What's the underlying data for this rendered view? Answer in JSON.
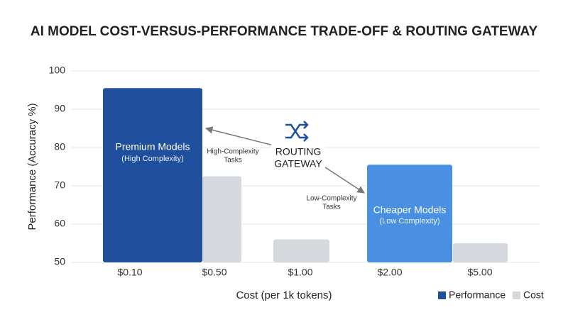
{
  "chart_data": {
    "type": "bar",
    "title": "AI MODEL COST-VERSUS-PERFORMANCE TRADE-OFF & ROUTING GATEWAY",
    "x_label": "Cost (per 1k tokens)",
    "y_label": "Performance (Accuracy %)",
    "categories": [
      "$0.10",
      "$0.50",
      "$1.00",
      "$2.00",
      "$5.00"
    ],
    "series": [
      {
        "name": "Performance",
        "color": "#1f4f9d",
        "point_colors": {
          "3": "#4a90e2"
        },
        "values": [
          95.5,
          null,
          null,
          75.5,
          null
        ]
      },
      {
        "name": "Cost",
        "color": "#d5d8dd",
        "values": [
          null,
          72.5,
          56,
          null,
          55
        ]
      }
    ],
    "ylim": [
      50,
      100
    ],
    "yticks": [
      50,
      60,
      70,
      80,
      90,
      100
    ],
    "grid": true,
    "legend": "bottom-right",
    "annotations": {
      "premium": [
        "Premium Models",
        "(High Complexity)"
      ],
      "cheaper": [
        "Cheaper Models",
        "(Low Complexity)"
      ],
      "high_tasks": [
        "High-Complexity",
        "Tasks"
      ],
      "low_tasks": [
        "Low-Complexity",
        "Tasks"
      ],
      "gateway": [
        "ROUTING",
        "GATEWAY"
      ]
    }
  }
}
